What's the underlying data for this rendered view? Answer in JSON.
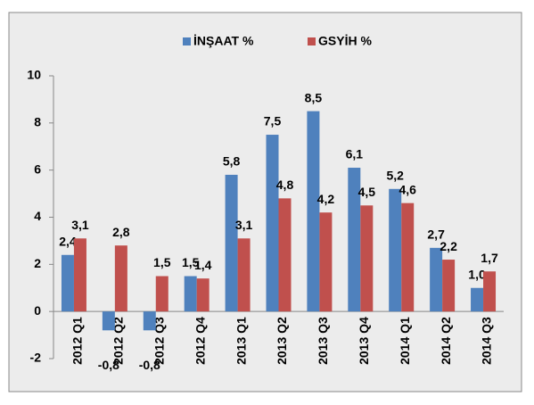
{
  "chart_data": {
    "type": "bar",
    "categories": [
      "2012 Q1",
      "2012 Q2",
      "2012 Q3",
      "2012 Q4",
      "2013 Q1",
      "2013 Q2",
      "2013 Q3",
      "2013 Q4",
      "2014 Q1",
      "2014 Q2",
      "2014 Q3"
    ],
    "series": [
      {
        "name": "İNŞAAT %",
        "color": "#4f81bd",
        "values": [
          2.4,
          -0.8,
          -0.8,
          1.5,
          5.8,
          7.5,
          8.5,
          6.1,
          5.2,
          2.7,
          1.0
        ],
        "value_labels": [
          "2,4",
          "-0,8",
          "-0,8",
          "1,5",
          "5,8",
          "7,5",
          "8,5",
          "6,1",
          "5,2",
          "2,7",
          "1,0"
        ]
      },
      {
        "name": "GSYİH %",
        "color": "#c0504d",
        "values": [
          3.1,
          2.8,
          1.5,
          1.4,
          3.1,
          4.8,
          4.2,
          4.5,
          4.6,
          2.2,
          1.7
        ],
        "value_labels": [
          "3,1",
          "2,8",
          "1,5",
          "1,4",
          "3,1",
          "4,8",
          "4,2",
          "4,5",
          "4,6",
          "2,2",
          "1,7"
        ]
      }
    ],
    "ylim": [
      -2,
      10
    ],
    "yticks": [
      -2,
      0,
      2,
      4,
      6,
      8,
      10
    ],
    "grid": false,
    "legend": "top"
  }
}
